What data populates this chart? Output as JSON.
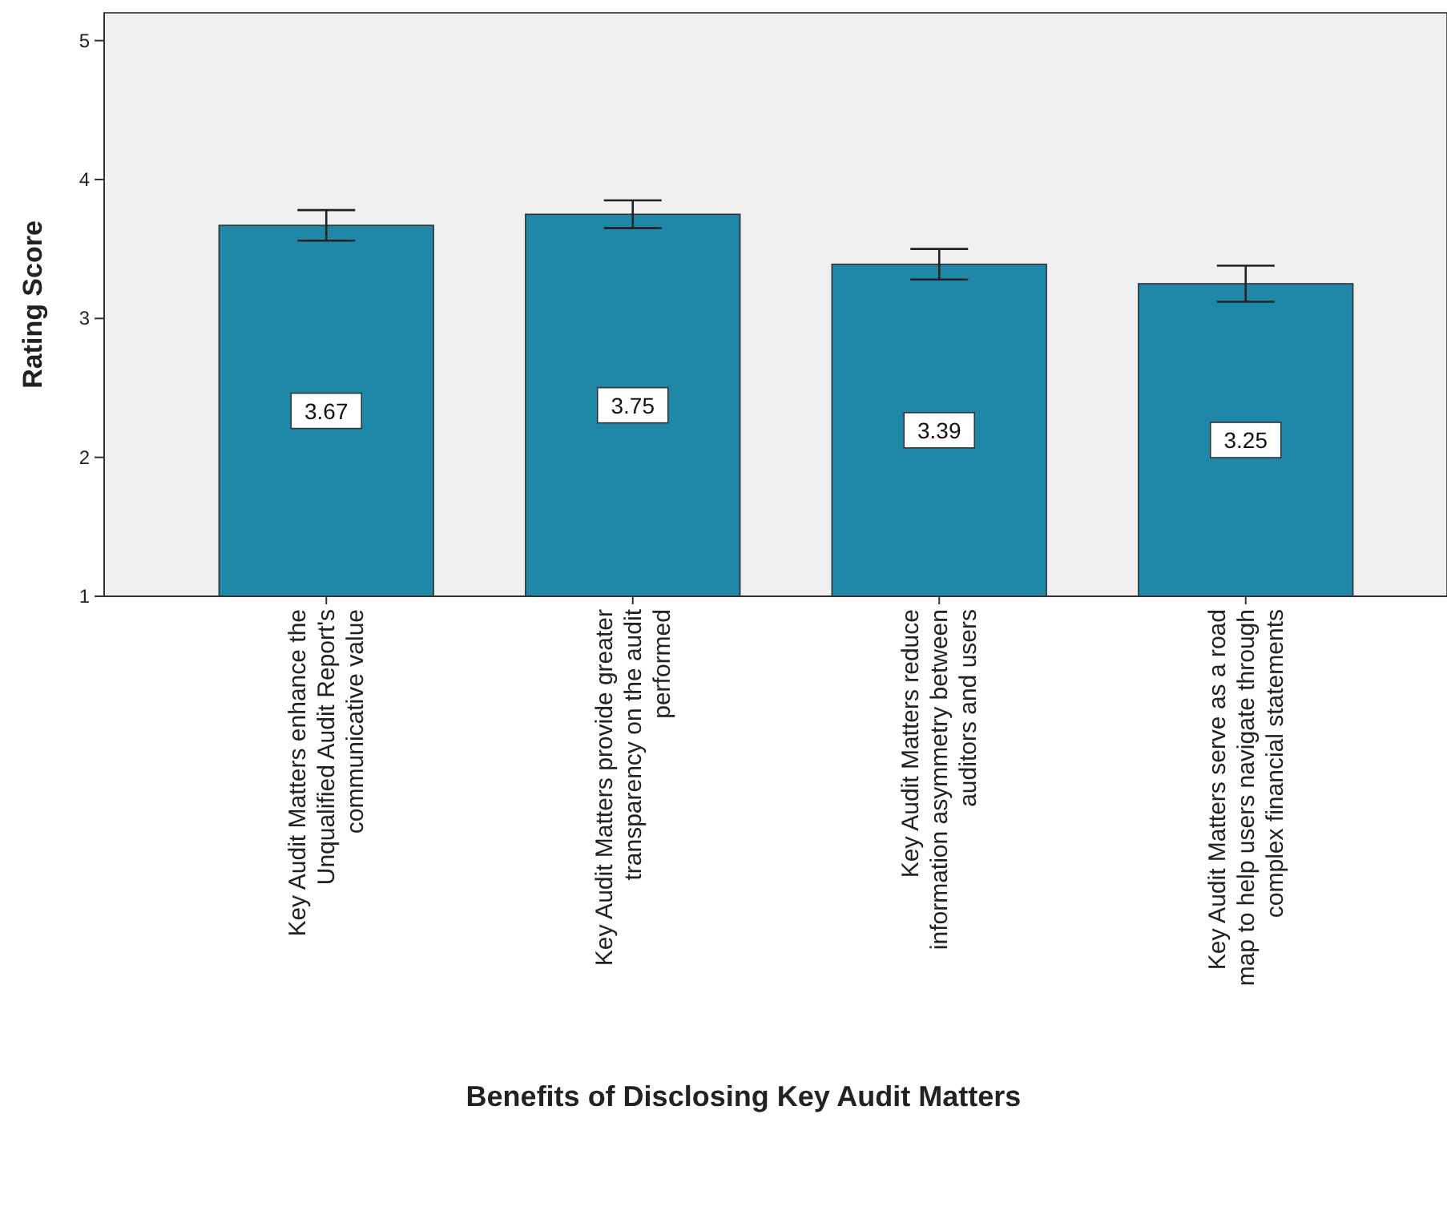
{
  "chart_data": {
    "type": "bar",
    "xlabel": "Benefits of Disclosing Key Audit Matters",
    "ylabel": "Rating Score",
    "categories": [
      "Key Audit Matters enhance the\nUnqualified Audit Report's\ncommunicative value",
      "Key Audit Matters provide greater\ntransparency on the audit\nperformed",
      "Key Audit Matters reduce\ninformation asymmetry between\nauditors and users",
      "Key Audit Matters serve as a road\nmap to help users navigate through\ncomplex financial statements"
    ],
    "values": [
      3.67,
      3.75,
      3.39,
      3.25
    ],
    "errors": [
      0.11,
      0.1,
      0.11,
      0.13
    ],
    "color": "#1f87a8",
    "data_labels": true,
    "ylim": [
      1,
      5.2
    ],
    "yticks": [
      1,
      2,
      3,
      4,
      5
    ],
    "grid": false
  }
}
